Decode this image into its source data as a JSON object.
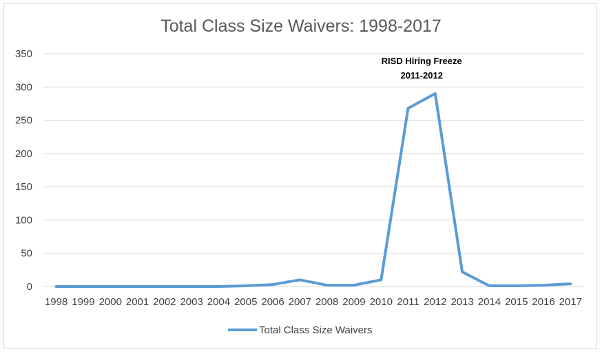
{
  "chart_data": {
    "type": "line",
    "title": "Total Class Size Waivers: 1998-2017",
    "xlabel": "",
    "ylabel": "",
    "categories": [
      "1998",
      "1999",
      "2000",
      "2001",
      "2002",
      "2003",
      "2004",
      "2005",
      "2006",
      "2007",
      "2008",
      "2009",
      "2010",
      "2011",
      "2012",
      "2013",
      "2014",
      "2015",
      "2016",
      "2017"
    ],
    "series": [
      {
        "name": "Total Class Size Waivers",
        "color": "#5b9bd5",
        "values": [
          0,
          0,
          0,
          0,
          0,
          0,
          0,
          1,
          3,
          10,
          2,
          2,
          10,
          268,
          290,
          22,
          1,
          1,
          2,
          4
        ]
      }
    ],
    "ylim": [
      0,
      350
    ],
    "yticks": [
      0,
      50,
      100,
      150,
      200,
      250,
      300,
      350
    ],
    "grid": true,
    "legend_position": "bottom",
    "annotations": [
      {
        "lines": [
          "RISD Hiring Freeze",
          "2011-2012"
        ],
        "anchor_category": "2011",
        "anchor_value": 350
      }
    ]
  }
}
